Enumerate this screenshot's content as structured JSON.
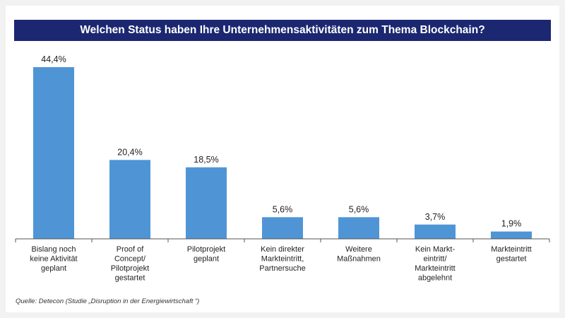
{
  "title": "Welchen Status haben Ihre Unternehmensaktivitäten zum Thema Blockchain?",
  "source": "Quelle: Detecon (Studie „Disruption in der Energiewirtschaft “)",
  "colors": {
    "bar": "#4f95d6",
    "title_bg": "#1b2770",
    "axis": "#555555"
  },
  "chart_data": {
    "type": "bar",
    "categories": [
      [
        "Bislang noch",
        "keine Aktivität",
        "geplant"
      ],
      [
        "Proof of",
        "Concept/",
        "Pilotprojekt",
        "gestartet"
      ],
      [
        "Pilotprojekt",
        "geplant"
      ],
      [
        "Kein direkter",
        "Markteintritt,",
        "Partnersuche"
      ],
      [
        "Weitere",
        "Maßnahmen"
      ],
      [
        "Kein Markt-",
        "eintritt/",
        "Markteintritt",
        "abgelehnt"
      ],
      [
        "Markteintritt",
        "gestartet"
      ]
    ],
    "values": [
      44.4,
      20.4,
      18.5,
      5.6,
      5.6,
      3.7,
      1.9
    ],
    "value_labels": [
      "44,4%",
      "20,4%",
      "18,5%",
      "5,6%",
      "5,6%",
      "3,7%",
      "1,9%"
    ],
    "xlabel": "",
    "ylabel": "",
    "ylim": [
      0,
      44.4
    ],
    "grid": false,
    "legend": "none"
  }
}
